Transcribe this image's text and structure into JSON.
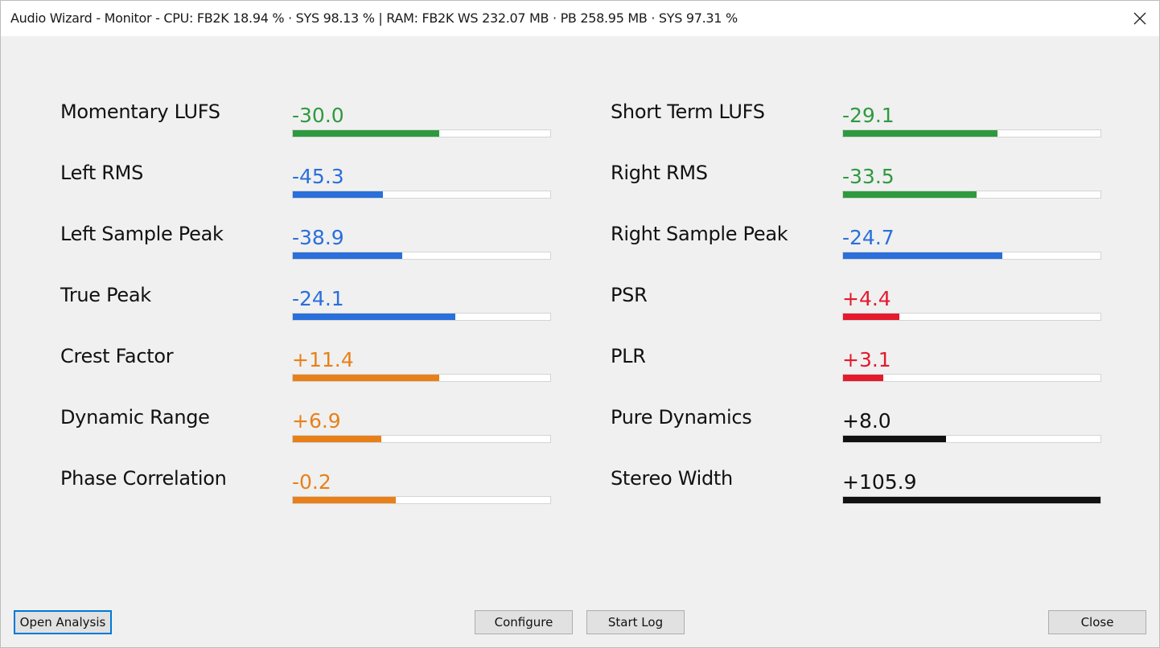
{
  "window": {
    "title": "Audio Wizard - Monitor - CPU: FB2K 18.94 %  · SYS 98.13 %  | RAM: FB2K WS 232.07 MB · PB 258.95 MB · SYS 97.31 %"
  },
  "colors": {
    "green": "#2e9a3f",
    "blue": "#2a6fdb",
    "orange": "#e8801a",
    "red": "#e31b2d",
    "black": "#111111"
  },
  "metrics": {
    "left": [
      {
        "label": "Momentary LUFS",
        "value": "-30.0",
        "level": 0.57,
        "color": "green"
      },
      {
        "label": "Left RMS",
        "value": "-45.3",
        "level": 0.35,
        "color": "blue"
      },
      {
        "label": "Left Sample Peak",
        "value": "-38.9",
        "level": 0.425,
        "color": "blue"
      },
      {
        "label": "True Peak",
        "value": "-24.1",
        "level": 0.63,
        "color": "blue"
      },
      {
        "label": "Crest Factor",
        "value": "+11.4",
        "level": 0.57,
        "color": "orange"
      },
      {
        "label": "Dynamic Range",
        "value": "+6.9",
        "level": 0.345,
        "color": "orange"
      },
      {
        "label": "Phase Correlation",
        "value": "-0.2",
        "level": 0.4,
        "color": "orange"
      }
    ],
    "right": [
      {
        "label": "Short Term LUFS",
        "value": "-29.1",
        "level": 0.6,
        "color": "green"
      },
      {
        "label": "Right RMS",
        "value": "-33.5",
        "level": 0.52,
        "color": "green"
      },
      {
        "label": "Right Sample Peak",
        "value": "-24.7",
        "level": 0.62,
        "color": "blue"
      },
      {
        "label": "PSR",
        "value": "+4.4",
        "level": 0.22,
        "color": "red"
      },
      {
        "label": "PLR",
        "value": "+3.1",
        "level": 0.155,
        "color": "red"
      },
      {
        "label": "Pure Dynamics",
        "value": "+8.0",
        "level": 0.4,
        "color": "black"
      },
      {
        "label": "Stereo Width",
        "value": "+105.9",
        "level": 1.0,
        "color": "black"
      }
    ]
  },
  "buttons": {
    "open_analysis": "Open Analysis",
    "configure": "Configure",
    "start_log": "Start Log",
    "close": "Close"
  }
}
